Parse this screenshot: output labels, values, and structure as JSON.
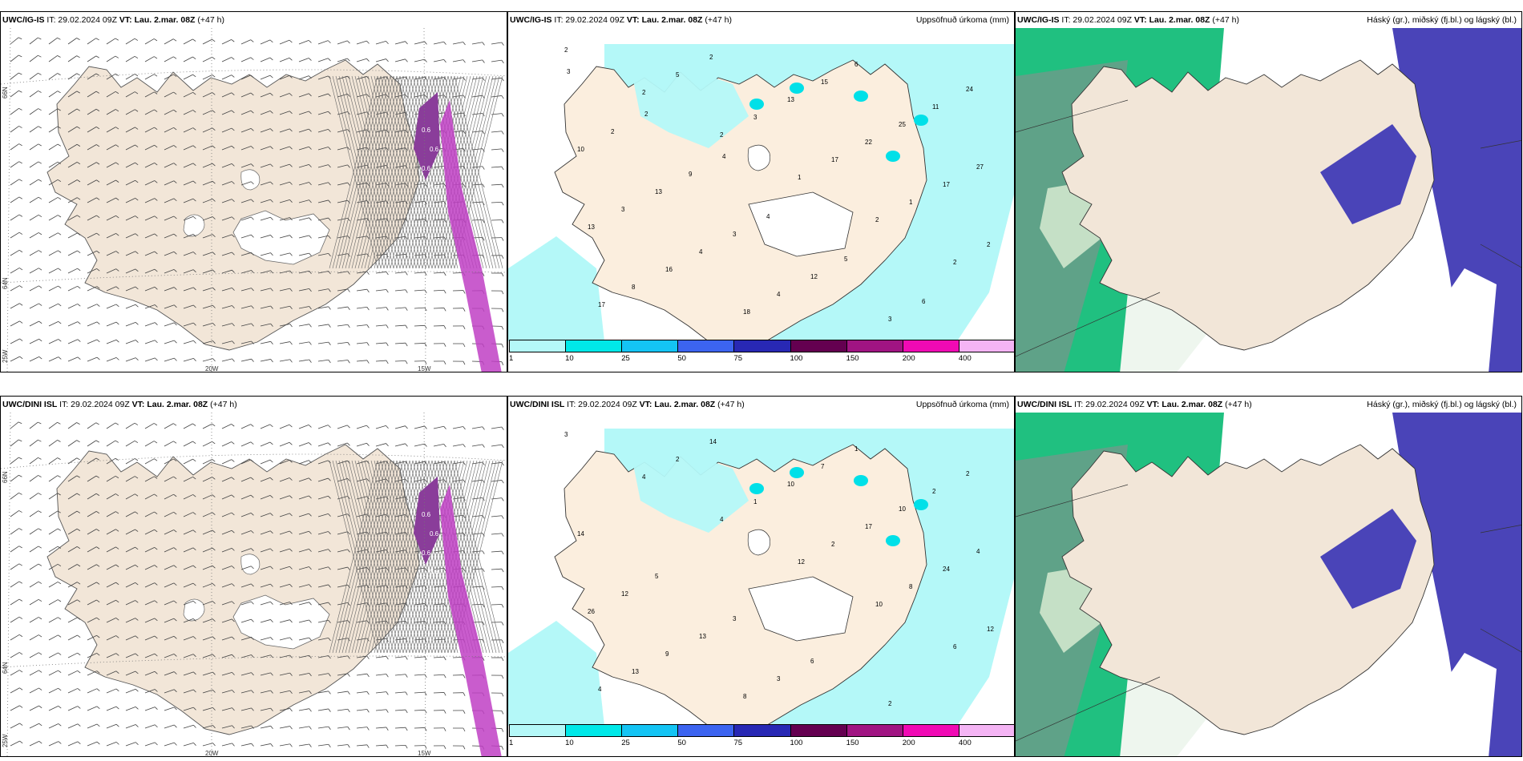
{
  "panels": [
    {
      "src": "UWC/IG-IS",
      "it": "IT: 29.02.2024 09Z",
      "vt_label": "VT:",
      "vt": "Lau. 2.mar. 08Z",
      "lead": "(+47 h)",
      "right": ""
    },
    {
      "src": "UWC/IG-IS",
      "it": "IT: 29.02.2024 09Z",
      "vt_label": "VT:",
      "vt": "Lau. 2.mar. 08Z",
      "lead": "(+47 h)",
      "right": "Uppsöfnuð úrkoma (mm)"
    },
    {
      "src": "UWC/IG-IS",
      "it": "IT: 29.02.2024 09Z",
      "vt_label": "VT:",
      "vt": "Lau. 2.mar. 08Z",
      "lead": "(+47 h)",
      "right": "Háský (gr.), miðský (fj.bl.) og lágský (bl.)"
    },
    {
      "src": "UWC/DINI ISL",
      "it": "IT: 29.02.2024 09Z",
      "vt_label": "VT:",
      "vt": "Lau. 2.mar. 08Z",
      "lead": "(+47 h)",
      "right": ""
    },
    {
      "src": "UWC/DINI ISL",
      "it": "IT: 29.02.2024 09Z",
      "vt_label": "VT:",
      "vt": "Lau. 2.mar. 08Z",
      "lead": "(+47 h)",
      "right": "Uppsöfnuð úrkoma (mm)"
    },
    {
      "src": "UWC/DINI ISL",
      "it": "IT: 29.02.2024 09Z",
      "vt_label": "VT:",
      "vt": "Lau. 2.mar. 08Z",
      "lead": "(+47 h)",
      "right": "Háský (gr.), miðský (fj.bl.) og lágský (bl.)"
    }
  ],
  "axis_labels": {
    "lon_20w": "20W",
    "lon_15w": "15W",
    "lat_66n": "66N",
    "lat_64n": "64N",
    "lat_25w": "25W"
  },
  "colorbar": {
    "ticks": [
      "1",
      "10",
      "25",
      "50",
      "75",
      "100",
      "150",
      "200",
      "400"
    ],
    "colors": [
      "#b4f8f8",
      "#00e8e8",
      "#14c4f4",
      "#3c64f0",
      "#2828b4",
      "#640050",
      "#a01482",
      "#f00ab4",
      "#f4b4f4"
    ]
  },
  "precip_top": [
    "2",
    "2",
    "2",
    "1",
    "2",
    "2",
    "17",
    "5",
    "3",
    "17",
    "1",
    "2",
    "8",
    "2",
    "13",
    "22",
    "17",
    "13",
    "16",
    "18",
    "15",
    "25",
    "27",
    "3",
    "4",
    "4",
    "6",
    "11",
    "10",
    "13",
    "3",
    "12",
    "3",
    "24",
    "2",
    "9",
    "4",
    "5",
    "6",
    "3",
    "2",
    "4"
  ],
  "precip_bottom": [
    "3",
    "4",
    "4",
    "12",
    "10",
    "6",
    "4",
    "2",
    "1",
    "2",
    "8",
    "12",
    "13",
    "14",
    "10",
    "17",
    "24",
    "26",
    "9",
    "8",
    "7",
    "10",
    "4",
    "12",
    "13",
    "3",
    "1",
    "2",
    "14",
    "5",
    "3",
    "6",
    "2",
    "2"
  ],
  "labels_fill": [
    "0.6",
    "0.6",
    "0.6",
    "0.6"
  ],
  "colors": {
    "land": "#f2e6d8",
    "sea": "#ffffff",
    "precip_light": "#b4f8f8",
    "cloud_high": "#4a44b8",
    "cloud_low": "#20c080"
  }
}
